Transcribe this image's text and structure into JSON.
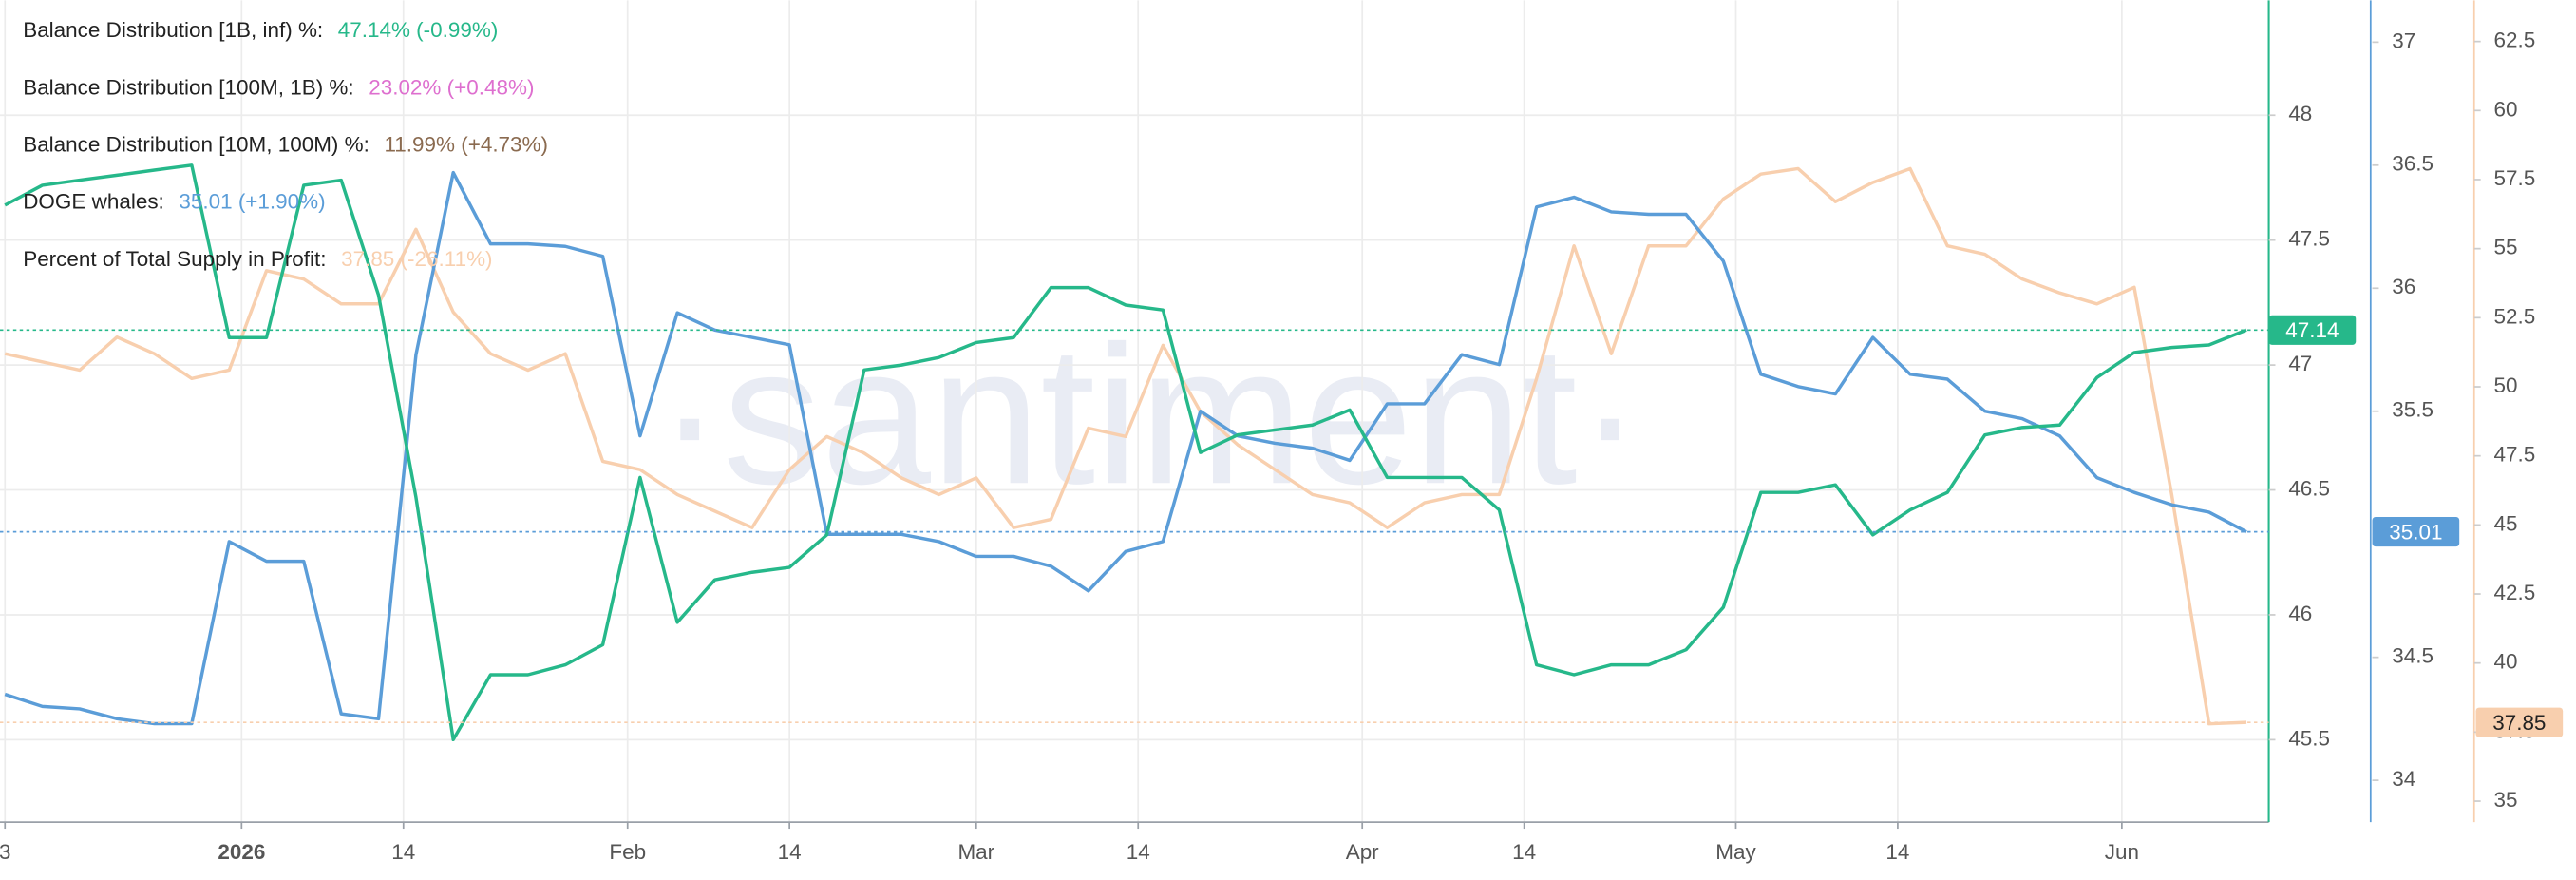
{
  "chart_data": {
    "type": "line",
    "watermark": "·santiment·",
    "x": [
      0,
      3,
      6,
      9,
      12,
      15,
      18,
      21,
      24,
      27,
      30,
      33,
      36,
      39,
      42,
      45,
      48,
      51,
      54,
      57,
      60,
      63,
      66,
      69,
      72,
      75,
      78,
      81,
      84,
      87,
      90,
      93,
      96,
      99,
      102,
      105,
      108,
      111,
      114,
      117,
      120,
      123,
      126,
      129,
      132,
      135,
      138,
      141,
      144,
      147,
      150,
      153,
      156,
      159,
      162,
      165,
      168,
      171,
      174,
      177,
      180
    ],
    "xlim": [
      -0.4,
      181.8
    ],
    "xticks": [
      {
        "value": 0,
        "label": "3"
      },
      {
        "value": 19,
        "label": "2026"
      },
      {
        "value": 32,
        "label": "14"
      },
      {
        "value": 50,
        "label": "Feb"
      },
      {
        "value": 63,
        "label": "14"
      },
      {
        "value": 78,
        "label": "Mar"
      },
      {
        "value": 91,
        "label": "14"
      },
      {
        "value": 109,
        "label": "Apr"
      },
      {
        "value": 122,
        "label": "14"
      },
      {
        "value": 139,
        "label": "May"
      },
      {
        "value": 152,
        "label": "14"
      },
      {
        "value": 170,
        "label": "Jun"
      }
    ],
    "ylim": [
      45.17,
      48.46
    ],
    "yticks": [
      45.5,
      46,
      46.5,
      47,
      47.5,
      48
    ],
    "y2lim": [
      33.83,
      37.17
    ],
    "y2ticks": [
      34,
      34.5,
      35,
      35.5,
      36,
      36.5,
      37
    ],
    "y3lim": [
      34.24,
      63.99
    ],
    "y3ticks": [
      35,
      37.5,
      40,
      42.5,
      45,
      47.5,
      50,
      52.5,
      55,
      57.5,
      60,
      62.5
    ],
    "grid": true,
    "series": [
      {
        "name": "Balance Distribution [1B, inf) %:",
        "summary": "47.14% (-0.99%)",
        "color": "#26b88a",
        "axis": "y",
        "end_label": "47.14",
        "values": [
          47.64,
          47.72,
          47.74,
          47.76,
          47.78,
          47.8,
          47.11,
          47.11,
          47.72,
          47.74,
          47.28,
          46.47,
          45.5,
          45.76,
          45.76,
          45.8,
          45.88,
          46.55,
          45.97,
          46.14,
          46.17,
          46.19,
          46.32,
          46.98,
          47.0,
          47.03,
          47.09,
          47.11,
          47.31,
          47.31,
          47.24,
          47.22,
          46.65,
          46.72,
          46.74,
          46.76,
          46.82,
          46.55,
          46.55,
          46.55,
          46.42,
          45.8,
          45.76,
          45.8,
          45.8,
          45.86,
          46.03,
          46.49,
          46.49,
          46.52,
          46.32,
          46.42,
          46.49,
          46.72,
          46.75,
          46.76,
          46.95,
          47.05,
          47.07,
          47.08,
          47.14
        ]
      },
      {
        "name": "Balance Distribution [100M, 1B) %:",
        "summary": "23.02% (+0.48%)",
        "color": "#de6fcf"
      },
      {
        "name": "Balance Distribution [10M, 100M) %:",
        "summary": "11.99% (+4.73%)",
        "color": "#8a6a4f"
      },
      {
        "name": "DOGE whales:",
        "summary": "35.01 (+1.90%)",
        "color": "#5b9dd8",
        "axis": "y2",
        "end_label": "35.01",
        "values": [
          34.35,
          34.3,
          34.29,
          34.25,
          34.23,
          34.23,
          34.97,
          34.89,
          34.89,
          34.27,
          34.25,
          35.73,
          36.47,
          36.18,
          36.18,
          36.17,
          36.13,
          35.4,
          35.9,
          35.83,
          35.8,
          35.77,
          35.0,
          35.0,
          35.0,
          34.97,
          34.91,
          34.91,
          34.87,
          34.77,
          34.93,
          34.97,
          35.5,
          35.4,
          35.37,
          35.35,
          35.3,
          35.53,
          35.53,
          35.73,
          35.69,
          36.33,
          36.37,
          36.31,
          36.3,
          36.3,
          36.11,
          35.65,
          35.6,
          35.57,
          35.8,
          35.65,
          35.63,
          35.5,
          35.47,
          35.4,
          35.23,
          35.17,
          35.12,
          35.09,
          35.01
        ]
      },
      {
        "name": "Percent of Total Supply in Profit:",
        "summary": "37.85 (-26.11%)",
        "color": "#f8cfae",
        "axis": "y3",
        "end_label": "37.85",
        "values": [
          51.2,
          50.9,
          50.6,
          51.8,
          51.2,
          50.3,
          50.6,
          54.2,
          53.9,
          53.0,
          53.0,
          55.7,
          52.7,
          51.2,
          50.6,
          51.2,
          47.3,
          47.0,
          46.1,
          45.5,
          44.9,
          47.0,
          48.2,
          47.6,
          46.7,
          46.1,
          46.7,
          44.9,
          45.2,
          48.5,
          48.2,
          51.5,
          49.1,
          47.9,
          47.0,
          46.1,
          45.8,
          44.9,
          45.8,
          46.1,
          46.1,
          50.3,
          55.1,
          51.2,
          55.1,
          55.1,
          56.8,
          57.7,
          57.9,
          56.7,
          57.4,
          57.9,
          55.1,
          54.8,
          53.9,
          53.4,
          53.0,
          53.6,
          46.1,
          37.8,
          37.85
        ]
      }
    ]
  }
}
